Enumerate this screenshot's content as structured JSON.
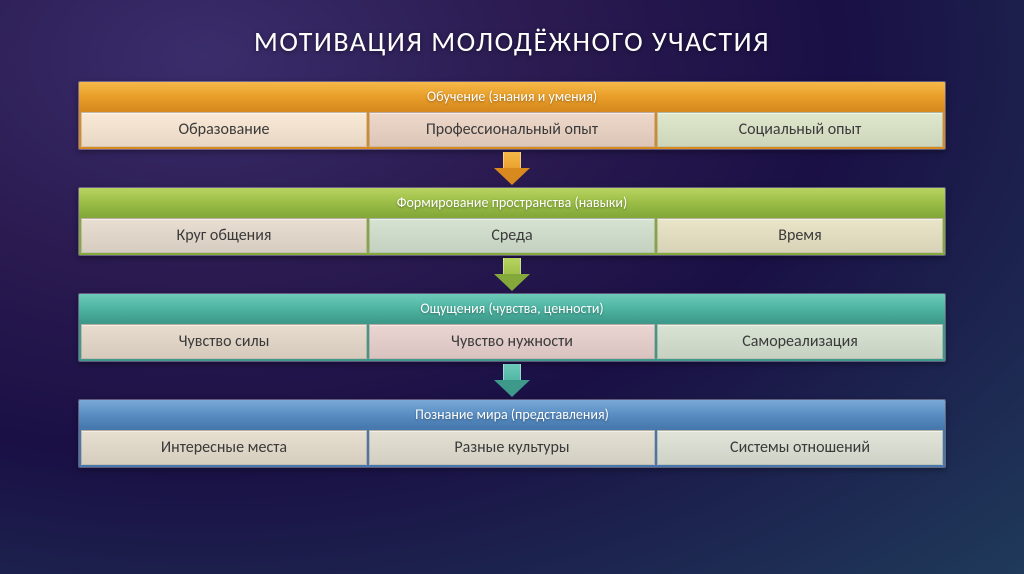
{
  "title": "МОТИВАЦИЯ МОЛОДЁЖНОГО УЧАСТИЯ",
  "blocks": [
    {
      "header": "Обучение (знания и умения)",
      "header_bg": "linear-gradient(to bottom,#f5b949 0%,#e99f2a 50%,#d88a1e 100%)",
      "row_bg": "#d88a1e",
      "cells": [
        "Образование",
        "Профессиональный опыт",
        "Социальный опыт"
      ],
      "cell_bgs": [
        "#e8d7c4",
        "#dcc6b8",
        "#cdd6bb"
      ],
      "arrow_stem_bg": "linear-gradient(to bottom,#f5b949,#e99f2a)",
      "arrow_head_color": "#d88a1e"
    },
    {
      "header": "Формирование пространства (навыки)",
      "header_bg": "linear-gradient(to bottom,#b8d460 0%,#9cbe47 50%,#84a93a 100%)",
      "row_bg": "#84a93a",
      "cells": [
        "Круг общения",
        "Среда",
        "Время"
      ],
      "cell_bgs": [
        "#d7ccc0",
        "#c5d1c0",
        "#d8d3b7"
      ],
      "arrow_stem_bg": "linear-gradient(to bottom,#b8d460,#9cbe47)",
      "arrow_head_color": "#84a93a"
    },
    {
      "header": "Ощущения (чувства, ценности)",
      "header_bg": "linear-gradient(to bottom,#6dcab8 0%,#4fb5a3 50%,#3d9a8b 100%)",
      "row_bg": "#3d9a8b",
      "cells": [
        "Чувство силы",
        "Чувство нужности",
        "Самореализация"
      ],
      "cell_bgs": [
        "#d6cabc",
        "#d9c3c0",
        "#c7d1c2"
      ],
      "arrow_stem_bg": "linear-gradient(to bottom,#6dcab8,#4fb5a3)",
      "arrow_head_color": "#3d9a8b"
    },
    {
      "header": "Познание мира (представления)",
      "header_bg": "linear-gradient(to bottom,#7aa9d6 0%,#5a8fc4 50%,#4678ad 100%)",
      "row_bg": "#4678ad",
      "cells": [
        "Интересные места",
        "Разные культуры",
        "Системы отношений"
      ],
      "cell_bgs": [
        "#d5cdbd",
        "#d2cfc2",
        "#cfd2c6"
      ],
      "arrow_stem_bg": "",
      "arrow_head_color": ""
    }
  ]
}
